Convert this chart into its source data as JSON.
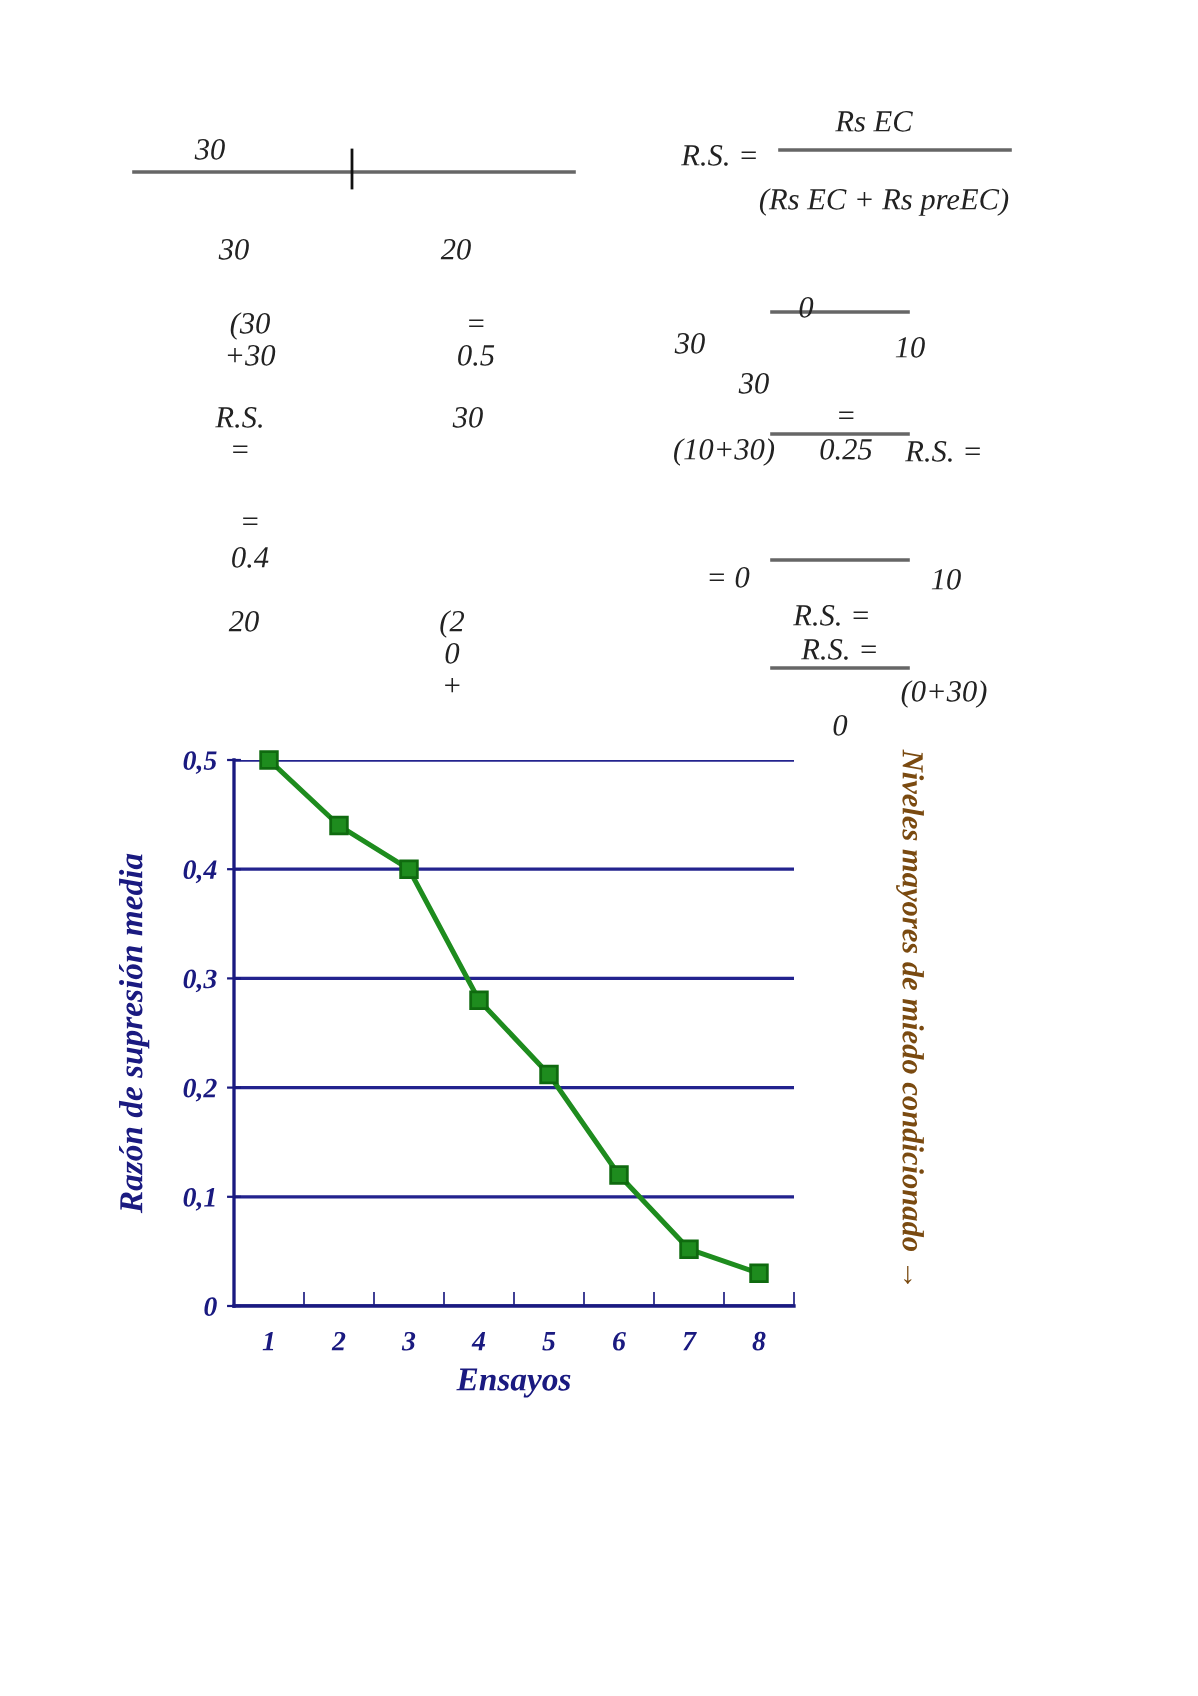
{
  "chart_data": {
    "type": "line",
    "categories": [
      "1",
      "2",
      "3",
      "4",
      "5",
      "6",
      "7",
      "8"
    ],
    "series": [
      {
        "color": "#1e8c1e",
        "values": [
          0.5,
          0.44,
          0.4,
          0.28,
          0.212,
          0.12,
          0.052,
          0.03
        ]
      }
    ],
    "ylim": [
      0,
      0.5
    ],
    "yticks": [
      0,
      {
        "value": 0.1,
        "label": "0,1"
      },
      {
        "value": 0.2,
        "label": "0,2"
      },
      {
        "value": 0.3,
        "label": "0,3"
      },
      {
        "value": 0.4,
        "label": "0,4"
      },
      {
        "value": 0.5,
        "label": "0,5"
      }
    ],
    "xlabel": "Ensayos",
    "ylabel": "Razón de supresión media",
    "grid": "y",
    "marker": "square",
    "line_style": "solid",
    "annotations": [
      "Niveles mayores de miedo condicionado →",
      "30",
      "30",
      "20",
      "(30",
      "+30",
      "=",
      "0.5",
      "R.S.",
      "=",
      "30",
      "=",
      "0.4",
      "20",
      "(2",
      "0",
      "+",
      "R.S. =",
      "Rs EC",
      "(Rs EC + Rs preEC)",
      "0",
      "30",
      "10",
      "30",
      "=",
      "(10+30)",
      "0.25",
      "R.S. =",
      "= 0",
      "10",
      "R.S. =",
      "R.S. =",
      "(0+30)",
      "0"
    ]
  }
}
